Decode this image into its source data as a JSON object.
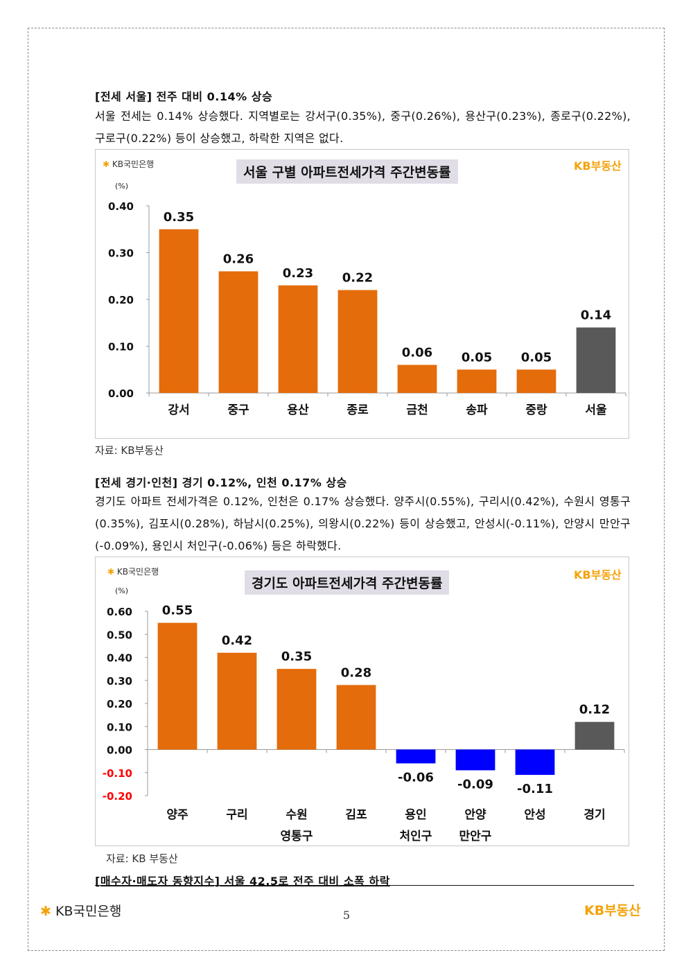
{
  "section1": {
    "heading": "[전세 서울] 전주 대비 0.14% 상승",
    "paragraph": "서울 전세는 0.14% 상승했다. 지역별로는 강서구(0.35%), 중구(0.26%), 용산구(0.23%), 종로구(0.22%), 구로구(0.22%) 등이 상승했고, 하락한 지역은 없다.",
    "source": "자료: KB부동산"
  },
  "section2": {
    "heading": "[전세 경기·인천] 경기 0.12%, 인천 0.17% 상승",
    "paragraph": "경기도 아파트 전세가격은 0.12%, 인천은 0.17% 상승했다. 양주시(0.55%), 구리시(0.42%), 수원시 영통구(0.35%), 김포시(0.28%), 하남시(0.25%), 의왕시(0.22%) 등이 상승했고, 안성시(-0.11%), 안양시 만안구(-0.09%), 용인시 처인구(-0.06%) 등은 하락했다.",
    "source": "자료: KB 부동산"
  },
  "section3": {
    "heading": "[매수자·매도자 동향지수] 서울 42.5로 전주 대비 소폭 하락"
  },
  "brand": {
    "kb_bank": "KB국민은행",
    "kb_realestate": "KB부동산",
    "star": "✱"
  },
  "page_number": "5",
  "colors": {
    "orange": "#e46c0a",
    "gray": "#595959",
    "blue": "#0000ff",
    "negative_tick": "#ff0000",
    "accent": "#f4a20a"
  },
  "chart_data": [
    {
      "type": "bar",
      "title": "서울 구별 아파트전세가격 주간변동률",
      "unit": "(%)",
      "categories": [
        [
          "강서"
        ],
        [
          "중구"
        ],
        [
          "용산"
        ],
        [
          "종로"
        ],
        [
          "금천"
        ],
        [
          "송파"
        ],
        [
          "중랑"
        ],
        [
          "서울"
        ]
      ],
      "values": [
        0.35,
        0.26,
        0.23,
        0.22,
        0.06,
        0.05,
        0.05,
        0.14
      ],
      "labels": [
        "0.35",
        "0.26",
        "0.23",
        "0.22",
        "0.06",
        "0.05",
        "0.05",
        "0.14"
      ],
      "bar_colors": [
        "orange",
        "orange",
        "orange",
        "orange",
        "orange",
        "orange",
        "orange",
        "gray"
      ],
      "ylim": [
        0,
        0.4
      ],
      "yticks": [
        "0.00",
        "0.10",
        "0.20",
        "0.30",
        "0.40"
      ],
      "ytick_values": [
        0,
        0.1,
        0.2,
        0.3,
        0.4
      ],
      "grid": false
    },
    {
      "type": "bar",
      "title": "경기도 아파트전세가격 주간변동률",
      "unit": "(%)",
      "categories": [
        [
          "양주"
        ],
        [
          "구리"
        ],
        [
          "수원",
          "영통구"
        ],
        [
          "김포"
        ],
        [
          "용인",
          "처인구"
        ],
        [
          "안양",
          "만안구"
        ],
        [
          "안성"
        ],
        [
          "경기"
        ]
      ],
      "values": [
        0.55,
        0.42,
        0.35,
        0.28,
        -0.06,
        -0.09,
        -0.11,
        0.12
      ],
      "labels": [
        "0.55",
        "0.42",
        "0.35",
        "0.28",
        "-0.06",
        "-0.09",
        "-0.11",
        "0.12"
      ],
      "bar_colors": [
        "orange",
        "orange",
        "orange",
        "orange",
        "blue",
        "blue",
        "blue",
        "gray"
      ],
      "ylim": [
        -0.2,
        0.6
      ],
      "yticks": [
        "-0.20",
        "-0.10",
        "0.00",
        "0.10",
        "0.20",
        "0.30",
        "0.40",
        "0.50",
        "0.60"
      ],
      "ytick_values": [
        -0.2,
        -0.1,
        0,
        0.1,
        0.2,
        0.3,
        0.4,
        0.5,
        0.6
      ],
      "grid": false
    }
  ]
}
